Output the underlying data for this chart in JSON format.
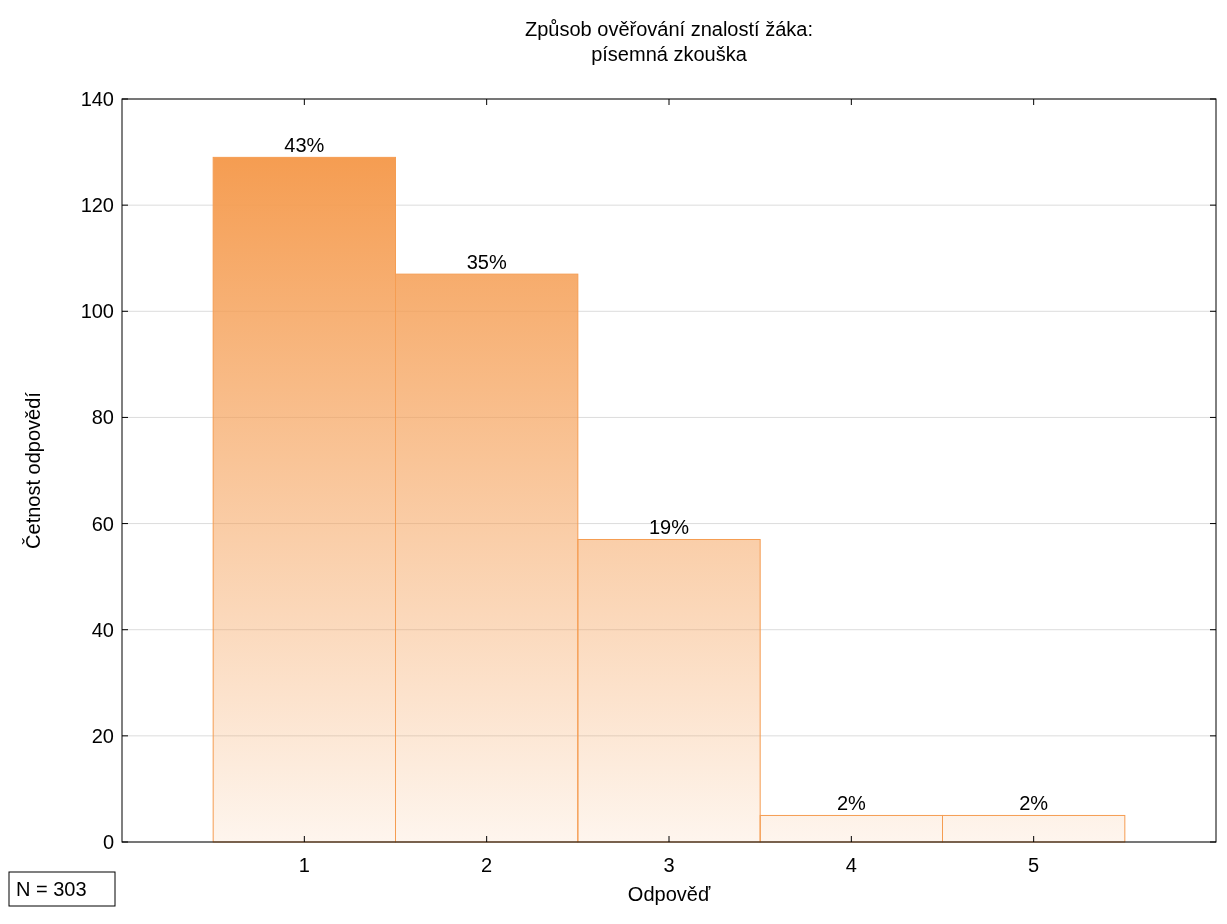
{
  "chart_data": {
    "type": "bar",
    "title": "Způsob ověřování znalostí žáka:\npísemná zkouška",
    "xlabel": "Odpověď",
    "ylabel": "Četnost odpovědí",
    "categories": [
      "1",
      "2",
      "3",
      "4",
      "5"
    ],
    "values": [
      129,
      107,
      57,
      5,
      5
    ],
    "color": "#f59d52",
    "ylim": [
      0,
      140
    ],
    "yticks": [
      0,
      20,
      40,
      60,
      80,
      100,
      120,
      140
    ],
    "grid": "y",
    "annotations": [
      {
        "text": "43%",
        "x": "1",
        "y": 129
      },
      {
        "text": "35%",
        "x": "2",
        "y": 107
      },
      {
        "text": "19%",
        "x": "3",
        "y": 57
      },
      {
        "text": "2%",
        "x": "4",
        "y": 5
      },
      {
        "text": "2%",
        "x": "5",
        "y": 5
      },
      "N = 303"
    ]
  }
}
